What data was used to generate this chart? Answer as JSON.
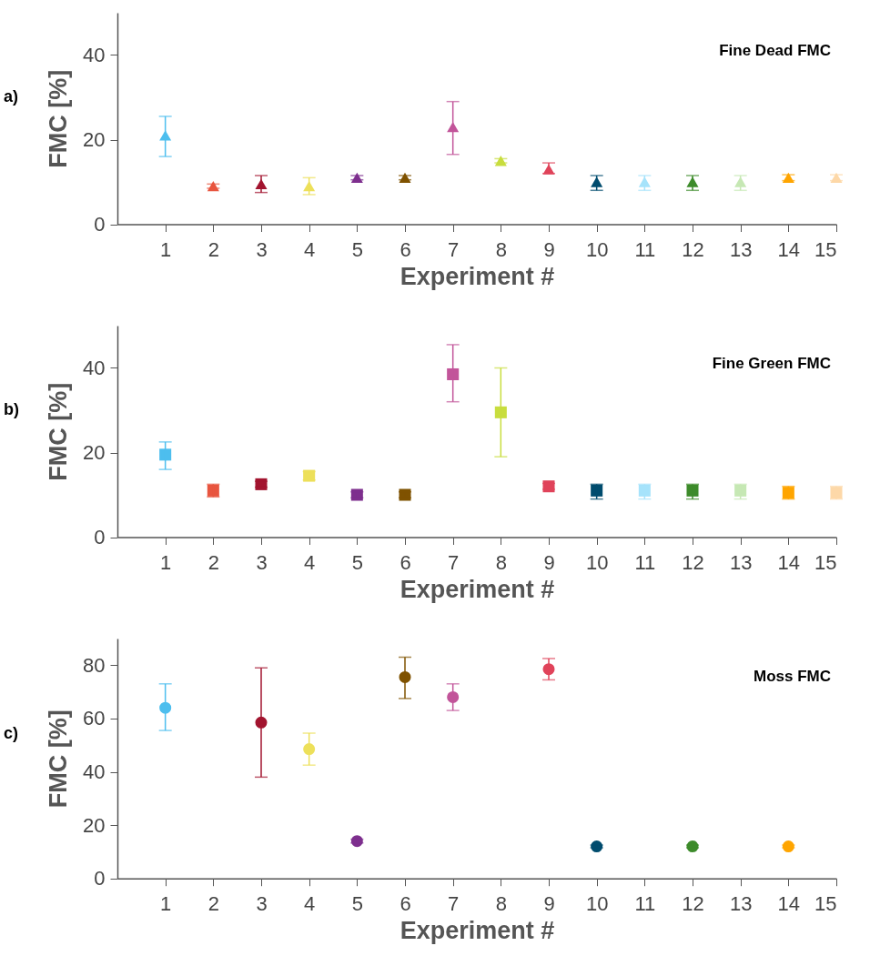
{
  "chart_data": [
    {
      "type": "scatter",
      "title": "Fine Dead FMC",
      "annotations": [
        "a)"
      ],
      "xlabel": "Experiment #",
      "ylabel": "FMC [%]",
      "marker": "triangle",
      "x": [
        1,
        2,
        3,
        4,
        5,
        6,
        7,
        8,
        9,
        10,
        11,
        12,
        13,
        14,
        15
      ],
      "values": [
        21,
        9,
        9.5,
        9,
        11,
        11,
        23,
        15,
        13,
        10,
        10,
        10,
        10,
        11,
        11
      ],
      "errors": [
        [
          16,
          25.5
        ],
        0.5,
        [
          7.5,
          11.5
        ],
        [
          7,
          11
        ],
        0.5,
        0.5,
        [
          16.5,
          29
        ],
        0.5,
        [
          12,
          14.5
        ],
        [
          8,
          11.5
        ],
        [
          8,
          11.5
        ],
        [
          8,
          11.5
        ],
        [
          8,
          11.5
        ],
        0.7,
        0.7
      ],
      "colors": [
        "#4dbeee",
        "#e8553f",
        "#a2142f",
        "#ede05a",
        "#7e2f8e",
        "#7f5200",
        "#c2559a",
        "#c8dd3e",
        "#e0435a",
        "#004c6e",
        "#a6e3fb",
        "#3d8b2b",
        "#c6e8b4",
        "#ffa500",
        "#fdd8a8"
      ],
      "xlim": [
        0,
        15
      ],
      "xticks": [
        1,
        2,
        3,
        4,
        5,
        6,
        7,
        8,
        9,
        10,
        11,
        12,
        13,
        14,
        15
      ],
      "ylim": [
        0,
        50
      ],
      "yticks": [
        0,
        20,
        40
      ],
      "grid": false
    },
    {
      "type": "scatter",
      "title": "Fine Green FMC",
      "annotations": [
        "b)"
      ],
      "xlabel": "Experiment #",
      "ylabel": "FMC [%]",
      "marker": "square",
      "x": [
        1,
        2,
        3,
        4,
        5,
        6,
        7,
        8,
        9,
        10,
        11,
        12,
        13,
        14,
        15
      ],
      "values": [
        19.5,
        11,
        12.5,
        14.5,
        10,
        10,
        38.5,
        29.5,
        12,
        11,
        11,
        11,
        11,
        10.5,
        10.5
      ],
      "errors": [
        [
          16,
          22.5
        ],
        [
          9.5,
          12.5
        ],
        0.7,
        1,
        0.7,
        0.7,
        [
          32,
          45.5
        ],
        [
          19,
          40
        ],
        0.7,
        [
          9,
          12.5
        ],
        [
          9,
          12.5
        ],
        [
          9,
          12.5
        ],
        [
          9,
          12.5
        ],
        [
          9,
          12
        ],
        [
          9,
          12
        ]
      ],
      "colors": [
        "#4dbeee",
        "#e8553f",
        "#a2142f",
        "#ede05a",
        "#7e2f8e",
        "#7f5200",
        "#c2559a",
        "#c8dd3e",
        "#e0435a",
        "#004c6e",
        "#a6e3fb",
        "#3d8b2b",
        "#c6e8b4",
        "#ffa500",
        "#fdd8a8"
      ],
      "xlim": [
        0,
        15
      ],
      "xticks": [
        1,
        2,
        3,
        4,
        5,
        6,
        7,
        8,
        9,
        10,
        11,
        12,
        13,
        14,
        15
      ],
      "ylim": [
        0,
        50
      ],
      "yticks": [
        0,
        20,
        40
      ],
      "grid": false
    },
    {
      "type": "scatter",
      "title": "Moss FMC",
      "annotations": [
        "c)"
      ],
      "xlabel": "Experiment #",
      "ylabel": "FMC [%]",
      "marker": "circle",
      "x": [
        1,
        3,
        4,
        5,
        6,
        7,
        9,
        10,
        12,
        14
      ],
      "values": [
        64,
        58.5,
        48.5,
        14,
        75.5,
        68,
        78.5,
        12,
        12,
        12
      ],
      "errors": [
        [
          55.5,
          73
        ],
        [
          38,
          79
        ],
        [
          42.5,
          54.5
        ],
        0.7,
        [
          67.5,
          83
        ],
        [
          63,
          73
        ],
        [
          74.5,
          82.5
        ],
        0.5,
        0.5,
        0.5
      ],
      "colors": [
        "#4dbeee",
        "#a2142f",
        "#ede05a",
        "#7e2f8e",
        "#7f5200",
        "#c2559a",
        "#e0435a",
        "#004c6e",
        "#3d8b2b",
        "#ffa500"
      ],
      "xlim": [
        0,
        15
      ],
      "xticks": [
        1,
        2,
        3,
        4,
        5,
        6,
        7,
        8,
        9,
        10,
        11,
        12,
        13,
        14,
        15
      ],
      "ylim": [
        0,
        90
      ],
      "yticks": [
        0,
        20,
        40,
        60,
        80
      ],
      "grid": false
    }
  ]
}
